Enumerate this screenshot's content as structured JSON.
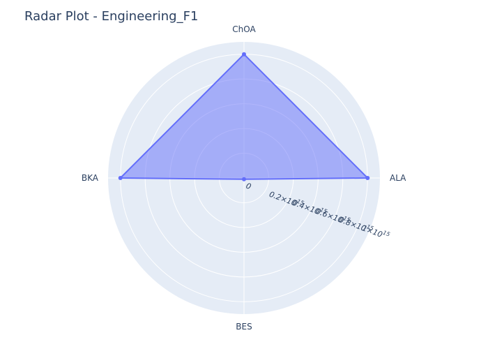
{
  "chart_data": {
    "type": "radar",
    "title": "Radar Plot - Engineering_F1",
    "categories": [
      "ALA",
      "ChOA",
      "BKA",
      "BES"
    ],
    "series": [
      {
        "values": [
          1000000000000000.0,
          1000000000000000.0,
          1000000000000000.0,
          10000000000000.0
        ]
      }
    ],
    "radial_range": [
      0,
      1100000000000000.0
    ],
    "radial_ticks": [
      {
        "value": 0,
        "mantissa": "0",
        "exp": ""
      },
      {
        "value": 200000000000000.0,
        "mantissa": "0.2×10",
        "exp": "15"
      },
      {
        "value": 400000000000000.0,
        "mantissa": "0.4×10",
        "exp": "15"
      },
      {
        "value": 600000000000000.0,
        "mantissa": "0.6×10",
        "exp": "15"
      },
      {
        "value": 800000000000000.0,
        "mantissa": "0.8×10",
        "exp": "15"
      },
      {
        "value": 1000000000000000.0,
        "mantissa": "1×10",
        "exp": "15"
      }
    ],
    "grid": true,
    "legend": "none",
    "colors": {
      "fill": "#636efa",
      "line": "#636efa",
      "polar_bg": "#e5ecf6",
      "grid": "#ffffff",
      "text": "#2a3f5f"
    }
  }
}
